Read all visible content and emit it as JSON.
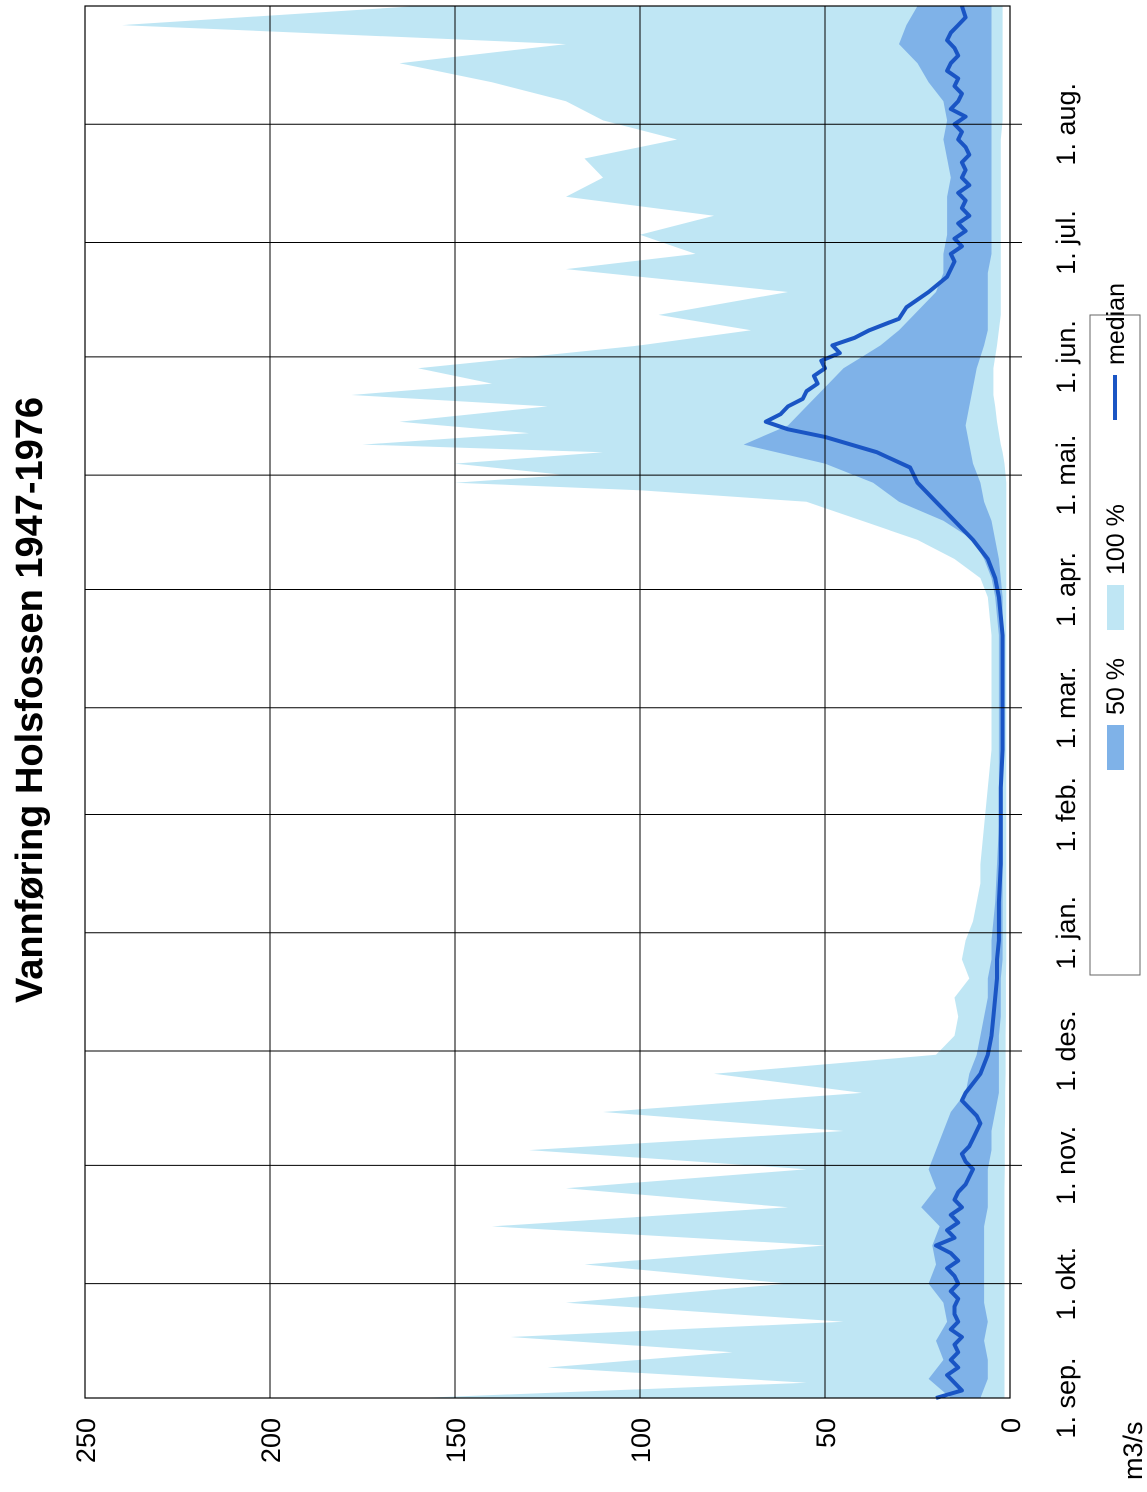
{
  "chart_data": {
    "type": "area",
    "title": "Vannføring Holsfossen 1947-1976",
    "ylabel": "m3/s",
    "ylim": [
      0,
      250
    ],
    "yticks": [
      0,
      50,
      100,
      150,
      200,
      250
    ],
    "x_range_days": [
      0,
      365
    ],
    "grid": true,
    "legend_position": "bottom-right",
    "x_ticks": [
      {
        "day": 0,
        "label": "1. sep."
      },
      {
        "day": 30,
        "label": "1. okt."
      },
      {
        "day": 61,
        "label": "1. nov."
      },
      {
        "day": 91,
        "label": "1. des."
      },
      {
        "day": 122,
        "label": "1. jan."
      },
      {
        "day": 153,
        "label": "1. feb."
      },
      {
        "day": 181,
        "label": "1. mar."
      },
      {
        "day": 212,
        "label": "1. apr."
      },
      {
        "day": 242,
        "label": "1. mai."
      },
      {
        "day": 273,
        "label": "1. jun."
      },
      {
        "day": 303,
        "label": "1. jul."
      },
      {
        "day": 334,
        "label": "1. aug."
      }
    ],
    "colors": {
      "band_100": "#bfe6f4",
      "band_50": "#7fb2e8",
      "median": "#1a55c4"
    },
    "legend": [
      {
        "key": "band_50",
        "label": "50 %"
      },
      {
        "key": "band_100",
        "label": "100 %"
      },
      {
        "key": "median",
        "label": "median"
      }
    ],
    "series": [
      {
        "name": "100 %",
        "x": [
          0,
          4,
          8,
          12,
          16,
          20,
          25,
          30,
          35,
          40,
          45,
          50,
          55,
          60,
          65,
          70,
          75,
          80,
          85,
          90,
          95,
          100,
          105,
          110,
          115,
          120,
          125,
          130,
          135,
          140,
          150,
          160,
          170,
          180,
          190,
          200,
          210,
          215,
          220,
          225,
          230,
          235,
          238,
          240,
          242,
          245,
          248,
          250,
          253,
          256,
          260,
          263,
          266,
          270,
          273,
          276,
          280,
          284,
          290,
          296,
          300,
          305,
          310,
          315,
          320,
          325,
          330,
          335,
          340,
          345,
          350,
          355,
          360,
          365
        ],
        "lower": [
          1.5,
          1.5,
          1.5,
          1.5,
          1.5,
          1.5,
          1.5,
          1.5,
          1.5,
          1.5,
          1.5,
          1.5,
          1.5,
          1.4,
          1.4,
          1.4,
          1.3,
          1.3,
          1.2,
          1.2,
          1.2,
          1.1,
          1.1,
          1.1,
          1.0,
          1.0,
          1.0,
          1.0,
          1.0,
          1.0,
          1.0,
          1.0,
          1.0,
          1.0,
          1.0,
          1.0,
          1.0,
          1.0,
          1.0,
          1.0,
          1.0,
          1.0,
          1.0,
          1.0,
          1.2,
          1.5,
          2.0,
          2.5,
          3.0,
          3.5,
          4.0,
          4.5,
          4.5,
          4.5,
          4.0,
          3.5,
          3.0,
          2.5,
          2.5,
          2.5,
          2.5,
          2.5,
          2.5,
          2.5,
          2.5,
          2.5,
          2.5,
          2.0,
          2.0,
          2.0,
          2.0,
          2.0,
          2.0,
          2.0
        ],
        "upper": [
          160,
          55,
          125,
          75,
          135,
          45,
          120,
          60,
          115,
          50,
          140,
          60,
          120,
          55,
          130,
          45,
          110,
          40,
          80,
          20,
          15,
          14,
          15,
          11,
          13,
          12,
          10,
          9,
          8,
          8,
          7,
          6,
          5,
          5,
          5,
          5,
          6,
          8,
          15,
          25,
          40,
          55,
          100,
          150,
          120,
          150,
          110,
          175,
          130,
          165,
          125,
          178,
          140,
          160,
          130,
          100,
          70,
          95,
          60,
          120,
          85,
          100,
          80,
          120,
          110,
          115,
          90,
          110,
          120,
          140,
          165,
          120,
          240,
          160
        ]
      },
      {
        "name": "50 %",
        "x": [
          0,
          5,
          10,
          15,
          20,
          25,
          30,
          35,
          40,
          45,
          50,
          55,
          60,
          65,
          70,
          75,
          80,
          85,
          90,
          95,
          100,
          105,
          110,
          115,
          120,
          130,
          140,
          150,
          160,
          170,
          180,
          190,
          200,
          205,
          210,
          215,
          220,
          225,
          230,
          235,
          240,
          245,
          250,
          255,
          260,
          265,
          270,
          273,
          276,
          280,
          285,
          290,
          295,
          300,
          305,
          310,
          315,
          320,
          325,
          330,
          335,
          340,
          345,
          350,
          355,
          360,
          365
        ],
        "lower": [
          8,
          6,
          6,
          7,
          6,
          7,
          7,
          7,
          7,
          7,
          6,
          6,
          6,
          5,
          5,
          4,
          3,
          3,
          3,
          3,
          2.5,
          2.5,
          2.5,
          2,
          2,
          2,
          2,
          2,
          2,
          2,
          2,
          2,
          2,
          2,
          2,
          2.5,
          3,
          4,
          5,
          7,
          8,
          10,
          11,
          12,
          11,
          10,
          9,
          8,
          7,
          6,
          6,
          6,
          6,
          5,
          5,
          5,
          5,
          5,
          5,
          5,
          5,
          5,
          5,
          5,
          5,
          5,
          5
        ],
        "upper": [
          16,
          22,
          18,
          20,
          17,
          18,
          22,
          20,
          21,
          19,
          24,
          20,
          22,
          20,
          18,
          16,
          12,
          11,
          9,
          8,
          7,
          6,
          6,
          5,
          5,
          4,
          3.5,
          3,
          3,
          3,
          3,
          3,
          3,
          3.5,
          4,
          5,
          7,
          10,
          18,
          30,
          37,
          50,
          72,
          60,
          55,
          50,
          45,
          40,
          35,
          30,
          25,
          20,
          18,
          18,
          17,
          17,
          17,
          16,
          17,
          18,
          17,
          18,
          22,
          25,
          30,
          28,
          25
        ]
      },
      {
        "name": "median",
        "x": [
          0,
          2,
          4,
          6,
          8,
          10,
          12,
          14,
          16,
          18,
          20,
          22,
          24,
          26,
          28,
          30,
          32,
          34,
          36,
          38,
          40,
          42,
          44,
          46,
          48,
          50,
          52,
          54,
          56,
          58,
          60,
          62,
          64,
          66,
          68,
          70,
          72,
          74,
          76,
          78,
          80,
          85,
          90,
          95,
          100,
          105,
          110,
          115,
          120,
          130,
          140,
          150,
          160,
          170,
          180,
          190,
          200,
          205,
          210,
          215,
          220,
          225,
          230,
          235,
          240,
          244,
          248,
          252,
          254,
          256,
          258,
          260,
          262,
          264,
          266,
          268,
          270,
          272,
          274,
          276,
          278,
          280,
          283,
          286,
          290,
          294,
          298,
          300,
          302,
          304,
          306,
          308,
          310,
          312,
          314,
          316,
          318,
          320,
          322,
          324,
          326,
          328,
          330,
          332,
          334,
          336,
          338,
          340,
          342,
          344,
          346,
          348,
          350,
          352,
          354,
          356,
          358,
          360,
          362,
          365
        ],
        "y": [
          20,
          13,
          15,
          17,
          14,
          16,
          14,
          15,
          13,
          16,
          14,
          15,
          15,
          14,
          16,
          14,
          15,
          17,
          14,
          16,
          20,
          15,
          17,
          14,
          16,
          13,
          15,
          14,
          12,
          11,
          10,
          12,
          13,
          11,
          10,
          9,
          8,
          9,
          11,
          13,
          12,
          8,
          6,
          5,
          4.5,
          4,
          3.5,
          3.5,
          3,
          3,
          2.5,
          2.5,
          2.5,
          2,
          2,
          2,
          2,
          2.5,
          3,
          4,
          6,
          10,
          15,
          20,
          25,
          27,
          36,
          50,
          60,
          66,
          62,
          60,
          56,
          55,
          52,
          53,
          50,
          51,
          46,
          48,
          42,
          38,
          30,
          28,
          22,
          17,
          15,
          16,
          13,
          15,
          12,
          14,
          11,
          13,
          12,
          14,
          11,
          13,
          12,
          13,
          11,
          12,
          14,
          13,
          15,
          12,
          16,
          14,
          13,
          15,
          14,
          17,
          16,
          14,
          15,
          17,
          16,
          14,
          12,
          13
        ],
        "note": ""
      }
    ]
  }
}
